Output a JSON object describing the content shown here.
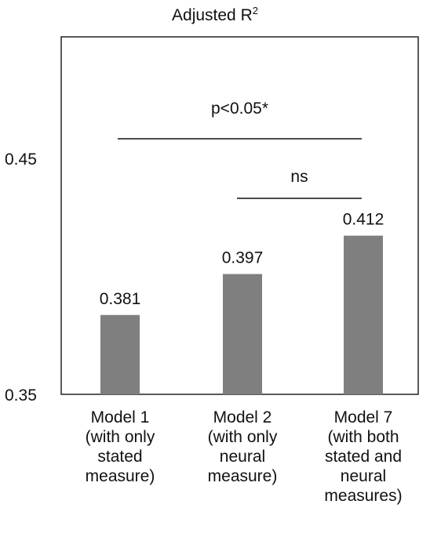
{
  "chart_data": {
    "type": "bar",
    "title": "Adjusted R",
    "title_superscript": "2",
    "categories": [
      [
        "Model 1",
        "(with only",
        "stated",
        "measure)"
      ],
      [
        "Model 2",
        "(with only",
        "neural",
        "measure)"
      ],
      [
        "Model 7",
        "(with both",
        "stated and",
        "neural",
        "measures)"
      ]
    ],
    "values": [
      0.381,
      0.397,
      0.412
    ],
    "value_labels": [
      "0.381",
      "0.397",
      "0.412"
    ],
    "yticks": [
      "0.45",
      "0.35"
    ],
    "ylim": [
      0.35,
      0.49
    ],
    "bar_color": "#7f7f7f",
    "grid": false,
    "annotations": [
      {
        "label": "p<0.05*",
        "from": 0,
        "to": 2
      },
      {
        "label": "ns",
        "from": 1,
        "to": 2
      }
    ]
  }
}
